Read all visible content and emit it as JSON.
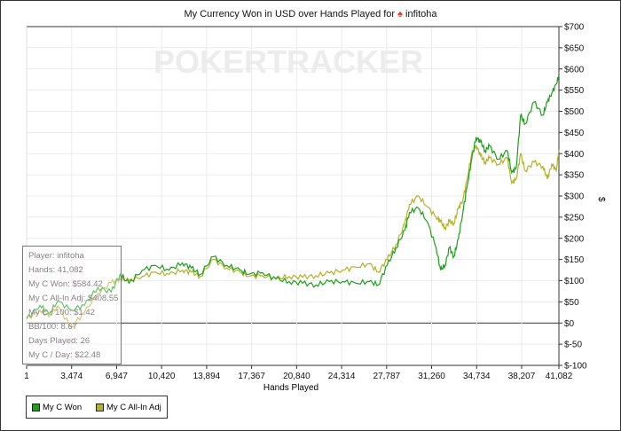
{
  "title": {
    "prefix": "My Currency Won in USD over Hands Played for",
    "player": "infitoha",
    "site_icon": "pokerstars-spade-icon"
  },
  "watermark": "POKERTRACKER",
  "chart_data": {
    "type": "line",
    "title": "My Currency Won in USD over Hands Played for infitoha",
    "xlabel": "Hands Played",
    "ylabel": "$",
    "xlim": [
      1,
      41082
    ],
    "ylim": [
      -100,
      700
    ],
    "x_ticks": [
      "1",
      "3,474",
      "6,947",
      "10,420",
      "13,894",
      "17,367",
      "20,840",
      "24,314",
      "27,787",
      "31,260",
      "34,734",
      "38,207",
      "41,082"
    ],
    "x_tick_values": [
      1,
      3474,
      6947,
      10420,
      13894,
      17367,
      20840,
      24314,
      27787,
      31260,
      34734,
      38207,
      41082
    ],
    "y_ticks": [
      "$-100",
      "$-50",
      "$0",
      "$50",
      "$100",
      "$150",
      "$200",
      "$250",
      "$300",
      "$350",
      "$400",
      "$450",
      "$500",
      "$550",
      "$600",
      "$650",
      "$700"
    ],
    "y_tick_values": [
      -100,
      -50,
      0,
      50,
      100,
      150,
      200,
      250,
      300,
      350,
      400,
      450,
      500,
      550,
      600,
      650,
      700
    ],
    "grid": true,
    "legend": "bottom-left",
    "series": [
      {
        "name": "My C Won",
        "color": "#1aa01a",
        "x": [
          1,
          1031,
          1718,
          2405,
          3436,
          4466,
          5497,
          6527,
          7214,
          7901,
          8932,
          9962,
          10993,
          12023,
          12710,
          13397,
          14428,
          15458,
          16489,
          17176,
          18206,
          19237,
          20267,
          21298,
          22328,
          23359,
          24389,
          25420,
          26450,
          27137,
          27824,
          28511,
          29198,
          29542,
          30229,
          30916,
          31603,
          31946,
          32290,
          32633,
          32977,
          33320,
          33664,
          34007,
          34351,
          34694,
          35038,
          35381,
          35725,
          36412,
          37099,
          37442,
          37786,
          38129,
          38473,
          39160,
          39847,
          40190,
          40534,
          40877,
          41082
        ],
        "y": [
          10,
          42,
          21,
          52,
          31,
          42,
          84,
          73,
          115,
          94,
          125,
          136,
          125,
          142,
          130,
          115,
          157,
          136,
          125,
          115,
          119,
          104,
          98,
          94,
          90,
          98,
          98,
          94,
          98,
          90,
          136,
          178,
          219,
          261,
          272,
          240,
          178,
          125,
          136,
          178,
          157,
          198,
          261,
          324,
          387,
          439,
          428,
          407,
          418,
          387,
          407,
          355,
          366,
          491,
          470,
          522,
          491,
          522,
          543,
          564,
          584.42
        ]
      },
      {
        "name": "My C All-In Adj",
        "color": "#b5b02a",
        "x": [
          1,
          1031,
          1718,
          2405,
          3436,
          4466,
          5497,
          6527,
          7214,
          7901,
          8932,
          9962,
          10993,
          12023,
          12710,
          13397,
          14428,
          15458,
          16489,
          17176,
          18206,
          19237,
          20267,
          21298,
          22328,
          23359,
          24389,
          25420,
          26450,
          27137,
          27824,
          28511,
          29198,
          29542,
          30229,
          30916,
          31603,
          31946,
          32290,
          32633,
          32977,
          33320,
          33664,
          34007,
          34351,
          34694,
          35038,
          35381,
          35725,
          36412,
          37099,
          37442,
          37786,
          38129,
          38473,
          39160,
          39847,
          40190,
          40534,
          40877,
          41082
        ],
        "y": [
          10,
          30,
          15,
          40,
          -10,
          25,
          70,
          95,
          105,
          100,
          110,
          120,
          115,
          125,
          120,
          110,
          150,
          130,
          120,
          110,
          112,
          105,
          110,
          108,
          112,
          118,
          125,
          132,
          140,
          120,
          150,
          185,
          235,
          280,
          300,
          275,
          250,
          240,
          225,
          240,
          235,
          270,
          290,
          340,
          400,
          420,
          395,
          380,
          390,
          375,
          390,
          330,
          340,
          400,
          360,
          380,
          370,
          340,
          375,
          360,
          408.55
        ]
      }
    ]
  },
  "stats": {
    "player": "Player: infitoha",
    "hands": "Hands: 41,082",
    "won": "My C Won: $584.42",
    "allin_adj": "My C All-In Adj: $408.55",
    "per100": "My C / 100: $1.42",
    "bb100": "BB/100: 8.67",
    "days": "Days Played: 26",
    "per_day": "My C / Day: $22.48"
  },
  "legend": {
    "items": [
      {
        "label": "My C Won",
        "color": "#1aa01a"
      },
      {
        "label": "My C All-In Adj",
        "color": "#b5b02a"
      }
    ]
  }
}
